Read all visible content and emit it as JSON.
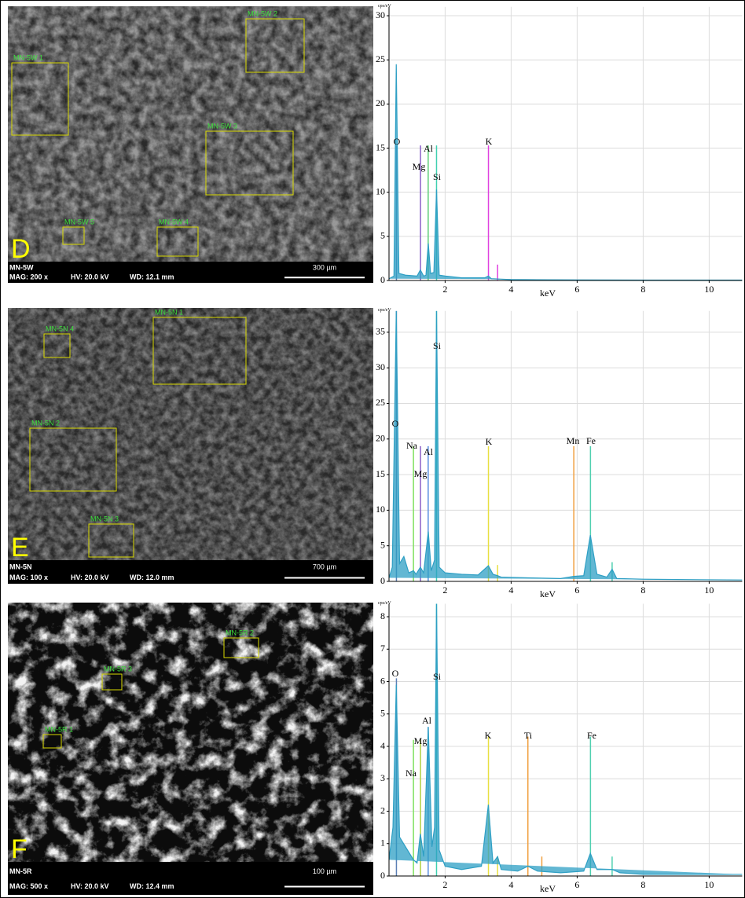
{
  "panels": [
    {
      "letter": "D",
      "sample": "MN-5W",
      "mag": "MAG: 200 x",
      "hv": "HV: 20.0 kV",
      "wd": "WD: 12.1 mm",
      "scale": "300 µm",
      "regions": [
        "MN-5W 1",
        "MN-5W 2",
        "MN-5W 3",
        "MN-5W 5",
        "MN-5W 4"
      ]
    },
    {
      "letter": "E",
      "sample": "MN-5N",
      "mag": "MAG: 100 x",
      "hv": "HV: 20.0 kV",
      "wd": "WD: 12.0 mm",
      "scale": "700 µm",
      "regions": [
        "MN-5N 4",
        "MN-5N 1",
        "MN-5N 2",
        "MN-5N 3"
      ]
    },
    {
      "letter": "F",
      "sample": "MN-5R",
      "mag": "MAG: 500 x",
      "hv": "HV: 20.0 kV",
      "wd": "WD: 12.4 mm",
      "scale": "100 µm",
      "regions": [
        "MN-5R 2",
        "MN-5R 3",
        "MN-5R 1"
      ]
    }
  ],
  "chart_data": [
    {
      "type": "spectrum",
      "y_label": "cps/eV",
      "x_label": "keV",
      "xlim": [
        0.3,
        11
      ],
      "xticks": [
        2,
        4,
        6,
        8,
        10
      ],
      "ylim": [
        0,
        31
      ],
      "yticks": [
        0,
        5,
        10,
        15,
        20,
        25,
        30
      ],
      "grid": true,
      "spectrum": {
        "color": "#2e9fc4",
        "x": [
          0.3,
          0.45,
          0.52,
          0.6,
          0.8,
          1.15,
          1.25,
          1.35,
          1.42,
          1.49,
          1.56,
          1.66,
          1.74,
          1.82,
          2.0,
          2.5,
          3.2,
          3.31,
          3.4,
          4,
          6,
          8,
          11
        ],
        "values": [
          0.2,
          0.5,
          24.5,
          0.8,
          0.6,
          0.5,
          1.2,
          0.5,
          0.6,
          4.2,
          0.8,
          0.9,
          10.3,
          0.6,
          0.5,
          0.3,
          0.3,
          0.5,
          0.2,
          0.1,
          0.05,
          0.05,
          0.05
        ]
      },
      "lines": [
        {
          "name": "O",
          "energy": 0.525,
          "height": 15.3,
          "color": "#5c7fb5"
        },
        {
          "name": "Mg",
          "energy": 1.254,
          "height": 15.3,
          "color": "#8a5fc8"
        },
        {
          "name": "Al",
          "energy": 1.487,
          "height": 15.3,
          "color": "#5fd07a"
        },
        {
          "name": "Si",
          "energy": 1.74,
          "height": 15.3,
          "color": "#40d0b0"
        },
        {
          "name": "K",
          "energy": 3.313,
          "height": 15.3,
          "color": "#e040e0"
        }
      ],
      "minor_lines": [
        {
          "energy": 3.59,
          "height": 1.8,
          "color": "#e040e0"
        }
      ]
    },
    {
      "type": "spectrum",
      "y_label": "cps/eV",
      "x_label": "keV",
      "xlim": [
        0.3,
        11
      ],
      "xticks": [
        2,
        4,
        6,
        8,
        10
      ],
      "ylim": [
        0,
        38
      ],
      "yticks": [
        0,
        5,
        10,
        15,
        20,
        25,
        30,
        35
      ],
      "grid": true,
      "spectrum": {
        "color": "#2e9fc4",
        "x": [
          0.3,
          0.4,
          0.52,
          0.62,
          0.75,
          0.9,
          1.04,
          1.12,
          1.25,
          1.35,
          1.49,
          1.58,
          1.68,
          1.74,
          1.82,
          2.0,
          2.5,
          3.0,
          3.31,
          3.45,
          3.59,
          3.7,
          4.5,
          5.5,
          5.9,
          6.2,
          6.4,
          6.6,
          6.9,
          7.06,
          7.2,
          8,
          11
        ],
        "values": [
          0.5,
          2,
          38,
          2.5,
          3.5,
          1.2,
          1.5,
          1,
          2,
          1.2,
          7,
          1.5,
          3,
          38,
          2,
          1.2,
          1,
          0.9,
          2.2,
          1,
          0.8,
          0.6,
          0.5,
          0.4,
          0.7,
          0.8,
          6.5,
          1,
          0.6,
          1.7,
          0.4,
          0.3,
          0.2
        ]
      },
      "lines": [
        {
          "name": "O",
          "energy": 0.525,
          "height": 38,
          "color": "#5c7fb5"
        },
        {
          "name": "Na",
          "energy": 1.041,
          "height": 19,
          "color": "#80e060"
        },
        {
          "name": "Mg",
          "energy": 1.254,
          "height": 19,
          "color": "#8a5fc8"
        },
        {
          "name": "Al",
          "energy": 1.487,
          "height": 19,
          "color": "#5a8fe0"
        },
        {
          "name": "Si",
          "energy": 1.74,
          "height": 38,
          "color": "#40d0b0"
        },
        {
          "name": "K",
          "energy": 3.313,
          "height": 19,
          "color": "#e8e040"
        },
        {
          "name": "Mn",
          "energy": 5.899,
          "height": 19,
          "color": "#f0a040"
        },
        {
          "name": "Fe",
          "energy": 6.404,
          "height": 19,
          "color": "#50d0b0"
        }
      ],
      "minor_lines": [
        {
          "energy": 3.59,
          "height": 2.3,
          "color": "#e8e040"
        },
        {
          "energy": 7.06,
          "height": 2.7,
          "color": "#50d0b0"
        }
      ]
    },
    {
      "type": "spectrum",
      "y_label": "cps/eV",
      "x_label": "keV",
      "xlim": [
        0.3,
        11
      ],
      "xticks": [
        2,
        4,
        6,
        8,
        10
      ],
      "ylim": [
        0,
        8.4
      ],
      "yticks": [
        0,
        1,
        2,
        3,
        4,
        5,
        6,
        7,
        8
      ],
      "grid": true,
      "spectrum": {
        "color": "#2e9fc4",
        "x": [
          0.3,
          0.42,
          0.52,
          0.62,
          0.8,
          1.04,
          1.15,
          1.25,
          1.35,
          1.49,
          1.6,
          1.68,
          1.74,
          1.82,
          2.0,
          2.5,
          3.1,
          3.31,
          3.45,
          3.59,
          3.7,
          4.2,
          4.51,
          4.8,
          5.5,
          6.2,
          6.4,
          6.6,
          7.06,
          7.3,
          8,
          11
        ],
        "values": [
          0.5,
          1.5,
          5.9,
          1.2,
          0.9,
          0.5,
          0.4,
          1.3,
          0.6,
          4.6,
          0.9,
          1.5,
          8.4,
          0.8,
          0.3,
          0.2,
          0.3,
          2.2,
          0.4,
          0.6,
          0.2,
          0.15,
          0.3,
          0.15,
          0.1,
          0.15,
          0.7,
          0.2,
          0.2,
          0.1,
          0.05,
          0.05
        ]
      },
      "lines": [
        {
          "name": "O",
          "energy": 0.525,
          "height": 6.1,
          "color": "#5c7fb5"
        },
        {
          "name": "Na",
          "energy": 1.041,
          "height": 4.2,
          "color": "#80e060"
        },
        {
          "name": "Mg",
          "energy": 1.254,
          "height": 4.2,
          "color": "#b0d040"
        },
        {
          "name": "Al",
          "energy": 1.487,
          "height": 4.6,
          "color": "#5a8fe0"
        },
        {
          "name": "Si",
          "energy": 1.74,
          "height": 8.4,
          "color": "#40d0b0"
        },
        {
          "name": "K",
          "energy": 3.313,
          "height": 4.3,
          "color": "#e8e040"
        },
        {
          "name": "Ti",
          "energy": 4.508,
          "height": 4.3,
          "color": "#f0a040"
        },
        {
          "name": "Fe",
          "energy": 6.404,
          "height": 4.3,
          "color": "#50d0b0"
        }
      ],
      "minor_lines": [
        {
          "energy": 3.59,
          "height": 0.6,
          "color": "#e8e040"
        },
        {
          "energy": 4.93,
          "height": 0.6,
          "color": "#f0a040"
        },
        {
          "energy": 7.06,
          "height": 0.6,
          "color": "#50d0b0"
        }
      ]
    }
  ]
}
